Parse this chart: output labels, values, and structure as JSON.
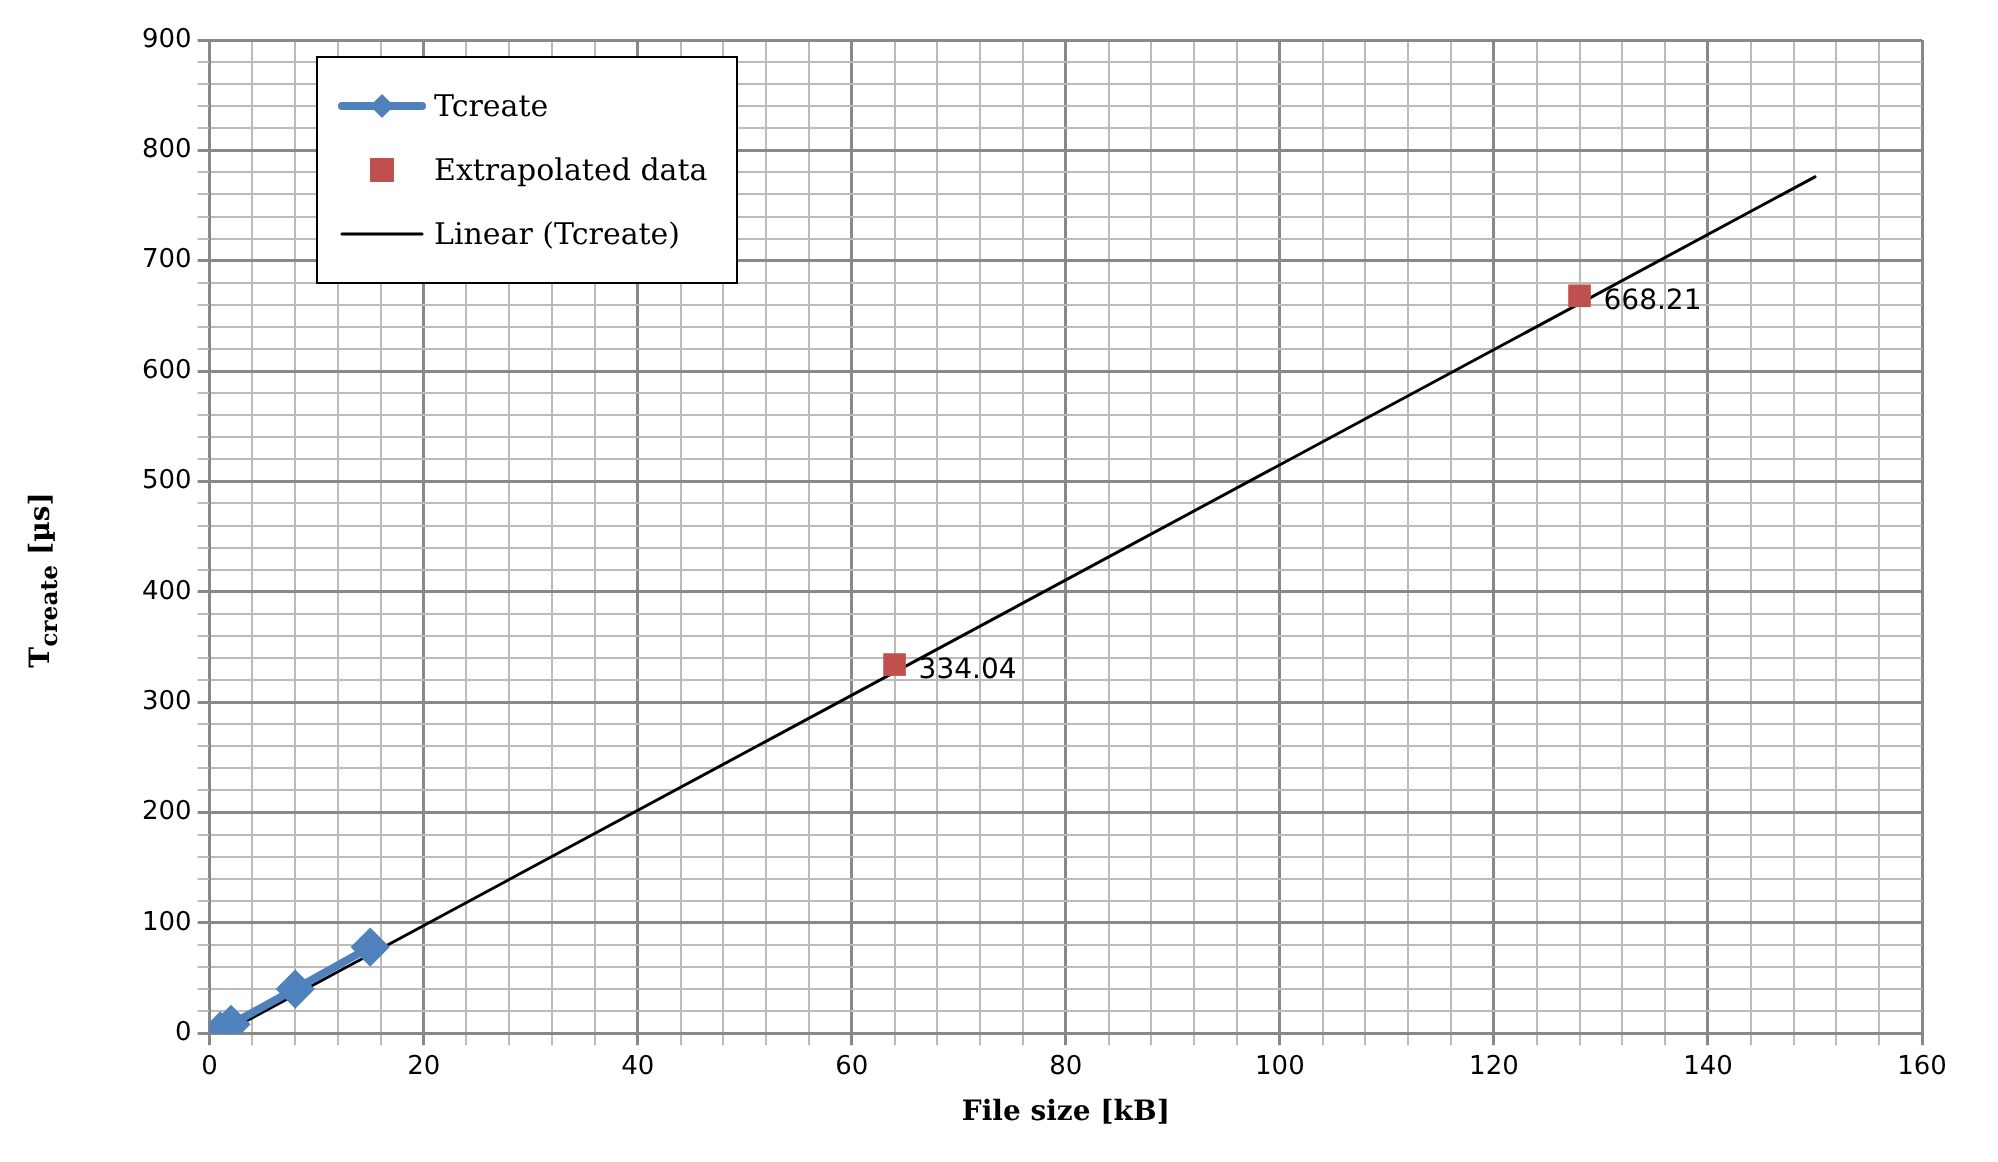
{
  "chart_data": {
    "type": "scatter",
    "xlabel": "File size [kB]",
    "ylabel": "T$_{create}$ [µs]",
    "xlim": [
      0,
      160
    ],
    "ylim": [
      0,
      900
    ],
    "xticks": [
      0,
      {
        "value": 4,
        "label": null
      },
      {
        "value": 8,
        "label": null
      },
      {
        "value": 12,
        "label": null
      },
      {
        "value": 16,
        "label": null
      },
      20,
      {
        "value": 24,
        "label": null
      },
      {
        "value": 28,
        "label": null
      },
      {
        "value": 32,
        "label": null
      },
      {
        "value": 36,
        "label": null
      },
      40,
      {
        "value": 44,
        "label": null
      },
      {
        "value": 48,
        "label": null
      },
      {
        "value": 52,
        "label": null
      },
      {
        "value": 56,
        "label": null
      },
      60,
      {
        "value": 64,
        "label": null
      },
      {
        "value": 68,
        "label": null
      },
      {
        "value": 72,
        "label": null
      },
      {
        "value": 76,
        "label": null
      },
      80,
      {
        "value": 84,
        "label": null
      },
      {
        "value": 88,
        "label": null
      },
      {
        "value": 92,
        "label": null
      },
      {
        "value": 96,
        "label": null
      },
      100,
      {
        "value": 104,
        "label": null
      },
      {
        "value": 108,
        "label": null
      },
      {
        "value": 112,
        "label": null
      },
      {
        "value": 116,
        "label": null
      },
      120,
      {
        "value": 124,
        "label": null
      },
      {
        "value": 128,
        "label": null
      },
      {
        "value": 132,
        "label": null
      },
      {
        "value": 136,
        "label": null
      },
      140,
      {
        "value": 144,
        "label": null
      },
      {
        "value": 148,
        "label": null
      },
      {
        "value": 152,
        "label": null
      },
      {
        "value": 156,
        "label": null
      },
      160
    ],
    "yticks": [
      0,
      {
        "value": 20,
        "label": null
      },
      {
        "value": 40,
        "label": null
      },
      {
        "value": 60,
        "label": null
      },
      {
        "value": 80,
        "label": null
      },
      100,
      {
        "value": 120,
        "label": null
      },
      {
        "value": 140,
        "label": null
      },
      {
        "value": 160,
        "label": null
      },
      {
        "value": 180,
        "label": null
      },
      200,
      {
        "value": 220,
        "label": null
      },
      {
        "value": 240,
        "label": null
      },
      {
        "value": 260,
        "label": null
      },
      {
        "value": 280,
        "label": null
      },
      300,
      {
        "value": 320,
        "label": null
      },
      {
        "value": 340,
        "label": null
      },
      {
        "value": 360,
        "label": null
      },
      {
        "value": 380,
        "label": null
      },
      400,
      {
        "value": 420,
        "label": null
      },
      {
        "value": 440,
        "label": null
      },
      {
        "value": 460,
        "label": null
      },
      {
        "value": 480,
        "label": null
      },
      500,
      {
        "value": 520,
        "label": null
      },
      {
        "value": 540,
        "label": null
      },
      {
        "value": 560,
        "label": null
      },
      {
        "value": 580,
        "label": null
      },
      600,
      {
        "value": 620,
        "label": null
      },
      {
        "value": 640,
        "label": null
      },
      {
        "value": 660,
        "label": null
      },
      {
        "value": 680,
        "label": null
      },
      700,
      {
        "value": 720,
        "label": null
      },
      {
        "value": 740,
        "label": null
      },
      {
        "value": 760,
        "label": null
      },
      {
        "value": 780,
        "label": null
      },
      800,
      {
        "value": 820,
        "label": null
      },
      {
        "value": 840,
        "label": null
      },
      {
        "value": 860,
        "label": null
      },
      {
        "value": 880,
        "label": null
      },
      900
    ],
    "grid": true,
    "legend": "top left",
    "series": [
      {
        "name": "Tcreate",
        "type": "line",
        "color": "#4f81bd",
        "marker": "diamond",
        "x": [
          1,
          2,
          8,
          15
        ],
        "values": [
          2,
          8,
          40,
          78
        ]
      },
      {
        "name": "Extrapolated data",
        "type": "scatter",
        "color": "#c0504d",
        "marker": "square",
        "x": [
          64,
          128
        ],
        "values": [
          334.04,
          668.21
        ],
        "data_labels": true
      },
      {
        "name": "Linear (Tcreate)",
        "type": "line",
        "color": "#000000",
        "marker": "none",
        "x": [
          1.5,
          150
        ],
        "values": [
          1,
          776
        ]
      }
    ]
  }
}
